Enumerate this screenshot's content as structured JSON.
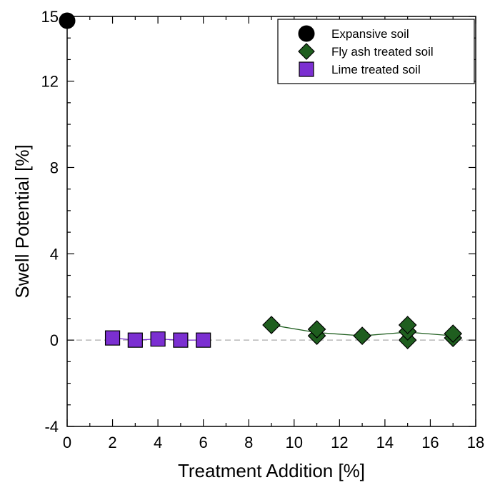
{
  "chart_data": {
    "type": "scatter",
    "xlabel": "Treatment Addition [%]",
    "ylabel": "Swell Potential  [%]",
    "xlim": [
      0,
      18
    ],
    "ylim": [
      -4,
      15
    ],
    "x_ticks": [
      0,
      2,
      4,
      6,
      8,
      10,
      12,
      14,
      16,
      18
    ],
    "y_ticks": [
      -4,
      0,
      4,
      8,
      12,
      15
    ],
    "x_tick_labels": [
      "0",
      "2",
      "4",
      "6",
      "8",
      "10",
      "12",
      "14",
      "16",
      "18"
    ],
    "y_tick_labels": [
      "-4",
      "0",
      "4",
      "8",
      "12",
      "15"
    ],
    "reference_line": {
      "y": 0,
      "style": "dashed",
      "color": "#aaaaaa"
    },
    "legend_position": "top-right",
    "series": [
      {
        "name": "Expansive soil",
        "marker": "circle",
        "color": "#000000",
        "connected": false,
        "points": [
          {
            "x": 0,
            "y": 14.8
          }
        ]
      },
      {
        "name": "Fly ash treated soil",
        "marker": "diamond",
        "color": "#1f5e1f",
        "connected": true,
        "points": [
          {
            "x": 9,
            "y": 0.7
          },
          {
            "x": 11,
            "y": 0.2
          },
          {
            "x": 11,
            "y": 0.5
          },
          {
            "x": 13,
            "y": 0.2
          },
          {
            "x": 15,
            "y": 0.0
          },
          {
            "x": 15,
            "y": 0.4
          },
          {
            "x": 15,
            "y": 0.7
          },
          {
            "x": 17,
            "y": 0.1
          },
          {
            "x": 17,
            "y": 0.3
          }
        ],
        "line_points": [
          {
            "x": 9,
            "y": 0.7
          },
          {
            "x": 11,
            "y": 0.35
          },
          {
            "x": 13,
            "y": 0.2
          },
          {
            "x": 15,
            "y": 0.37
          },
          {
            "x": 17,
            "y": 0.2
          }
        ]
      },
      {
        "name": "Lime treated soil",
        "marker": "square",
        "color": "#7b2fd1",
        "connected": true,
        "points": [
          {
            "x": 2,
            "y": 0.1
          },
          {
            "x": 3,
            "y": 0.0
          },
          {
            "x": 4,
            "y": 0.05
          },
          {
            "x": 5,
            "y": 0.0
          },
          {
            "x": 6,
            "y": 0.0
          }
        ],
        "line_points": [
          {
            "x": 2,
            "y": 0.1
          },
          {
            "x": 3,
            "y": 0.0
          },
          {
            "x": 4,
            "y": 0.05
          },
          {
            "x": 5,
            "y": 0.0
          },
          {
            "x": 6,
            "y": 0.0
          }
        ]
      }
    ]
  }
}
